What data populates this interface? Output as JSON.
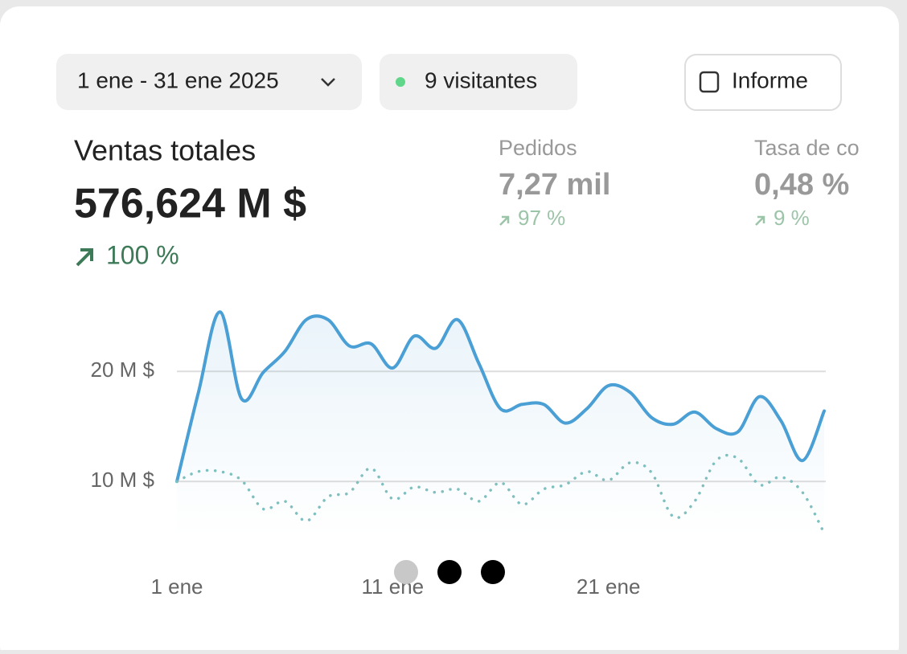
{
  "header": {
    "date_range": "1 ene - 31 ene 2025",
    "visitors": "9 visitantes",
    "report_button": "Informe"
  },
  "metrics": [
    {
      "label": "Ventas totales",
      "value": "576,624 M $",
      "change": "100 %"
    },
    {
      "label": "Pedidos",
      "value": "7,27 mil",
      "change": "97 %"
    },
    {
      "label": "Tasa de co",
      "value": "0,48 %",
      "change": "9 %"
    }
  ],
  "chart_data": {
    "type": "line",
    "categories": [
      "1 ene",
      null,
      null,
      null,
      null,
      null,
      null,
      null,
      null,
      null,
      "11 ene",
      null,
      null,
      null,
      null,
      null,
      null,
      null,
      null,
      null,
      "21 ene",
      null,
      null,
      null,
      null,
      null,
      null,
      null,
      null,
      null,
      null
    ],
    "series": [
      {
        "color": "#4a9fd5",
        "values": [
          10,
          18.1,
          25.4,
          17.5,
          19.9,
          21.8,
          24.7,
          24.7,
          22.3,
          22.5,
          20.3,
          23.2,
          22.1,
          24.7,
          20.7,
          16.6,
          17.0,
          17.0,
          15.3,
          16.6,
          18.7,
          18.1,
          15.8,
          15.2,
          16.3,
          14.8,
          14.5,
          17.7,
          15.5,
          11.9,
          16.4
        ]
      },
      {
        "color": "#7fbfbf",
        "values": [
          10,
          10.9,
          10.9,
          10.1,
          7.5,
          8.2,
          6.4,
          8.6,
          9.0,
          11.2,
          8.4,
          9.5,
          9.0,
          9.3,
          8.2,
          9.9,
          7.9,
          9.3,
          9.7,
          10.9,
          10.1,
          11.7,
          10.8,
          6.8,
          8.2,
          11.9,
          12.1,
          9.7,
          10.4,
          9.0,
          5.3
        ]
      }
    ],
    "ylim": [
      5,
      26
    ],
    "yticks": [
      {
        "value": 10,
        "label": "10 M $"
      },
      {
        "value": 20,
        "label": "20 M $"
      }
    ],
    "grid": true
  }
}
